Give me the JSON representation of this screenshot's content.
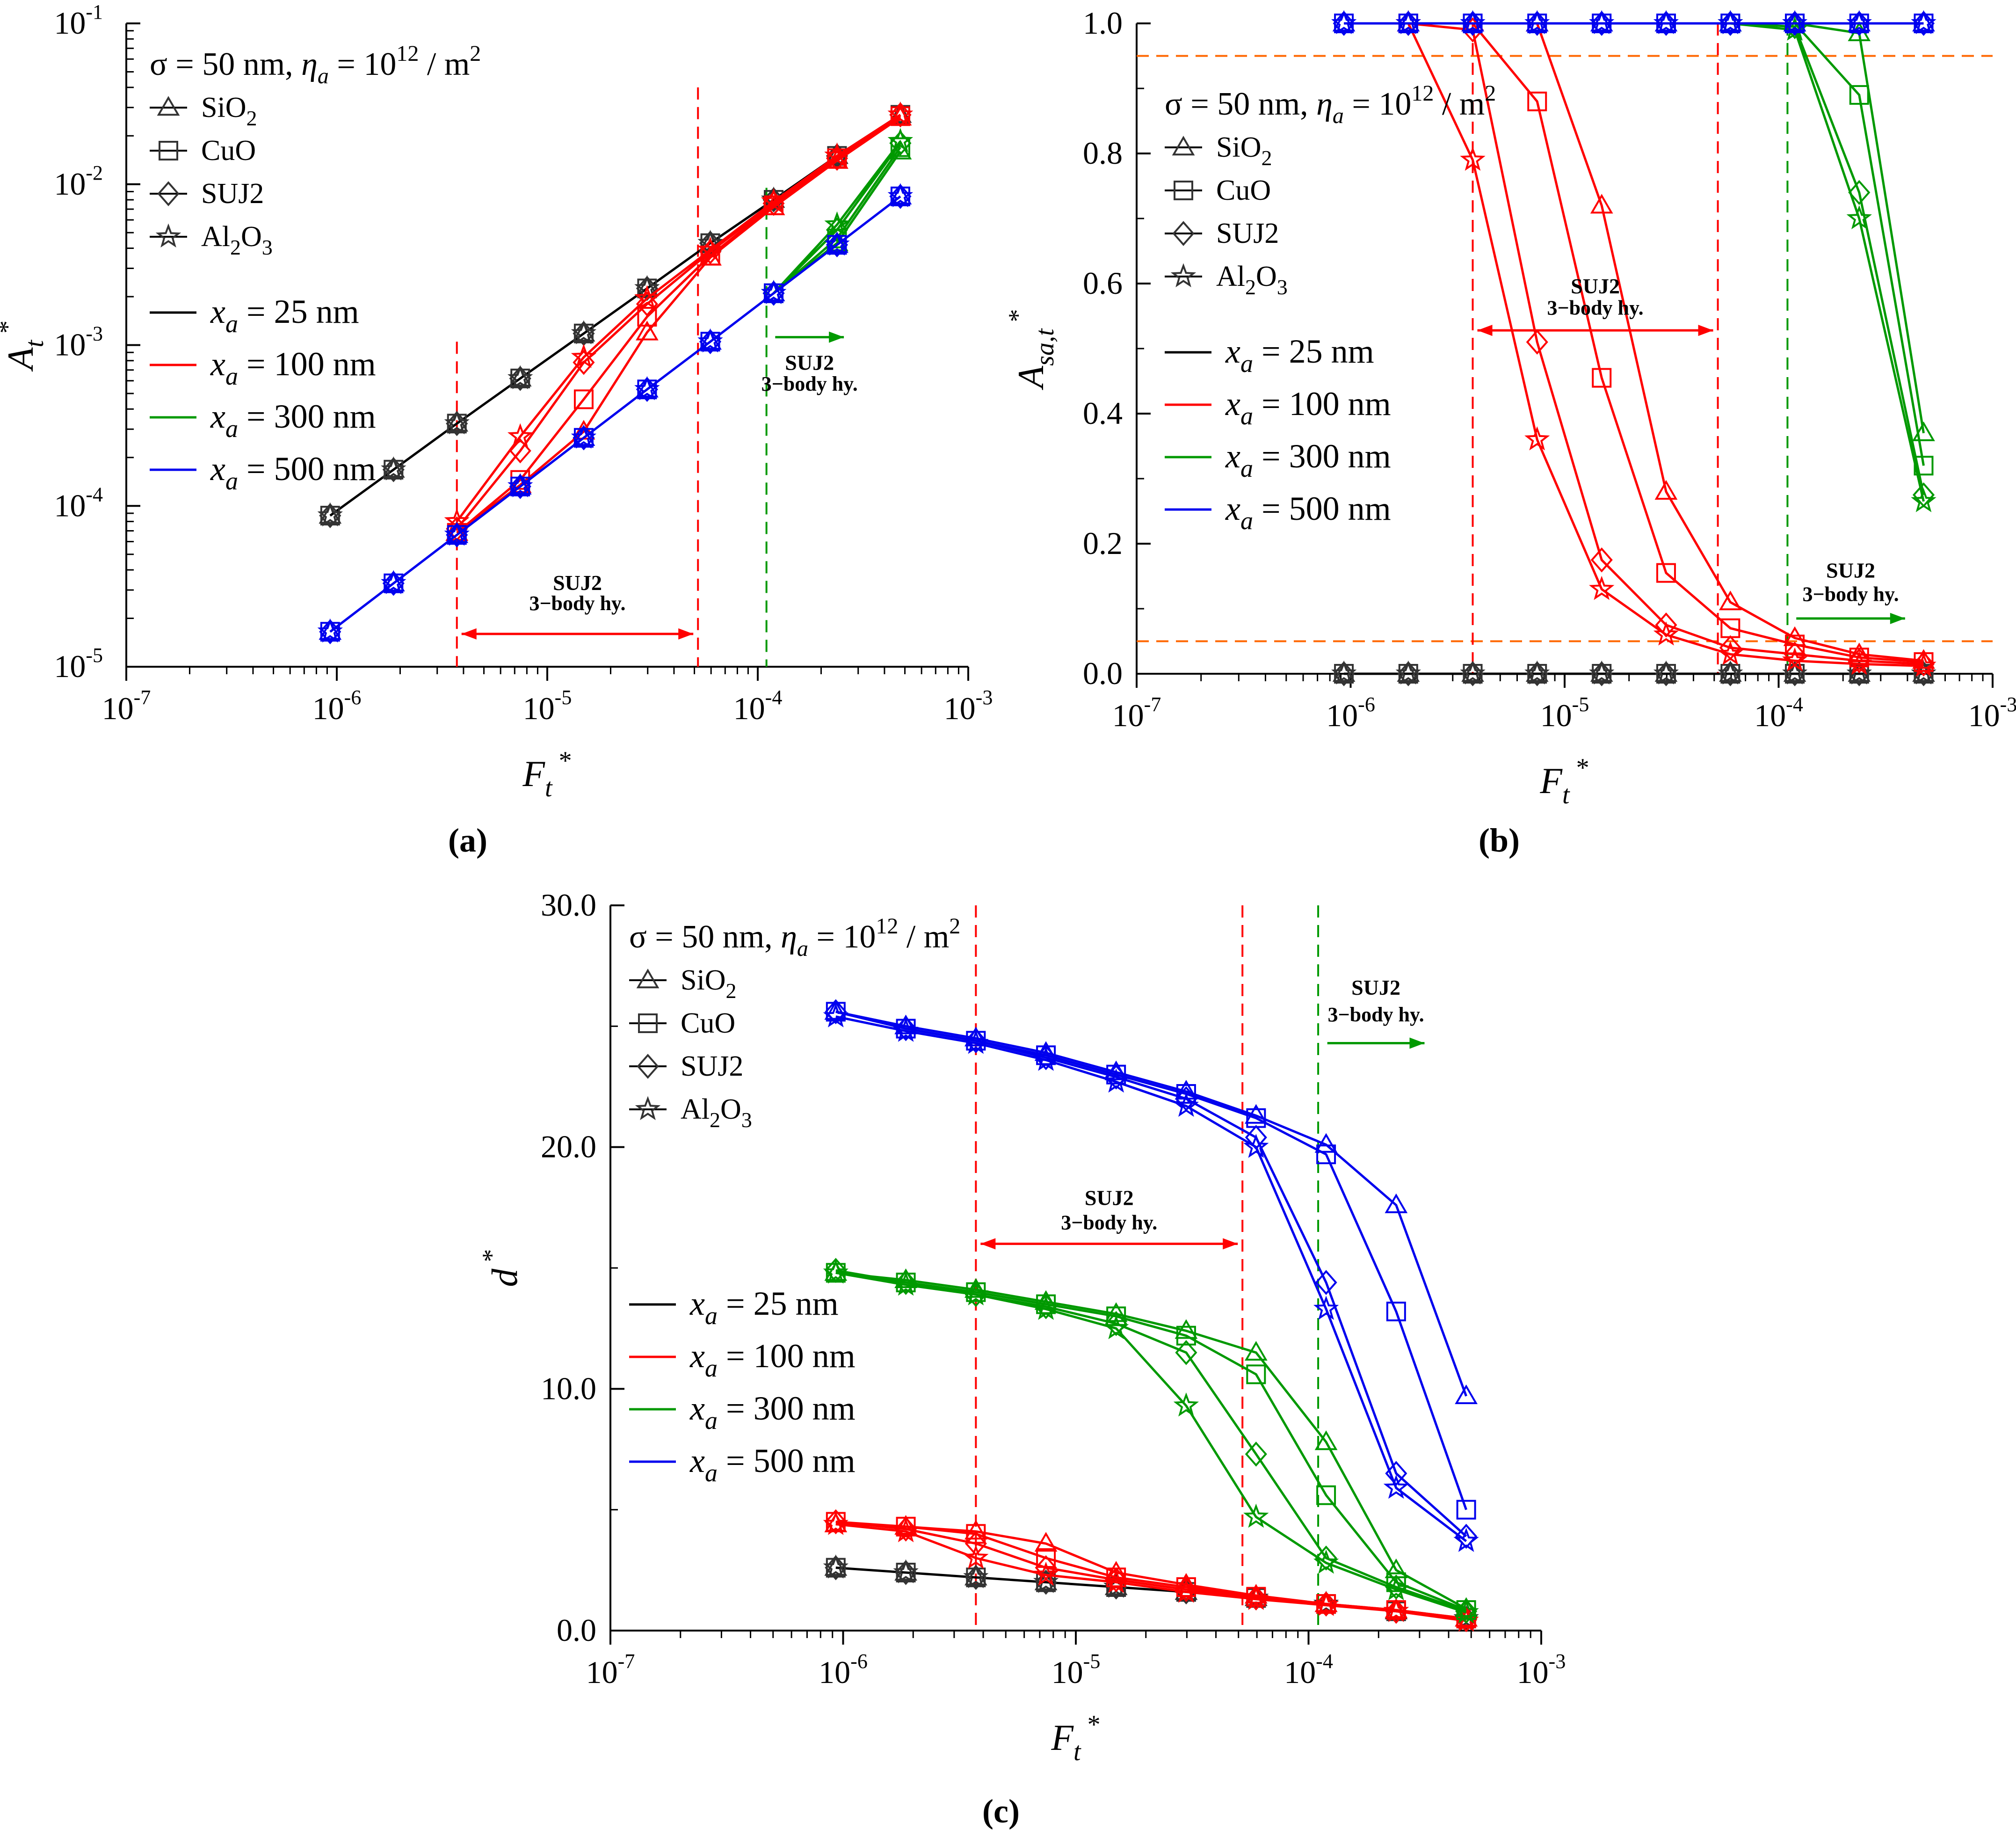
{
  "figure_title": "Three-panel figure: (a) A_t*, (b) A_sa,t*, (c) d* versus F_t*",
  "colors": {
    "xa_25": "#000000",
    "xa_100": "#ff0000",
    "xa_300": "#009900",
    "xa_500": "#0000ee",
    "limit_line": "#ff6600",
    "marker_ink": "#333333"
  },
  "common": {
    "sigma_label": "σ = 50 nm,",
    "eta_sym": "η",
    "eta_sub": "a",
    "eta_eq": " = 10",
    "eta_exp": "12",
    "eta_unit": " / m",
    "eta_unit_exp": "2",
    "x_label_main": "F",
    "x_label_sub": "t",
    "x_label_sup": "*",
    "materials": [
      {
        "key": "SiO2",
        "main": "SiO",
        "sub": "2",
        "tail": "",
        "marker": "triangle-icon"
      },
      {
        "key": "CuO",
        "main": "CuO",
        "sub": "",
        "tail": "",
        "marker": "square-icon"
      },
      {
        "key": "SUJ2",
        "main": "SUJ2",
        "sub": "",
        "tail": "",
        "marker": "diamond-icon"
      },
      {
        "key": "Al2O3",
        "main": "Al",
        "sub": "2",
        "tail": "O",
        "sub2": "3",
        "marker": "star-icon"
      }
    ],
    "series_names": [
      {
        "key": "xa_25",
        "sym": "x",
        "sub": "a",
        "text": " = 25 nm"
      },
      {
        "key": "xa_100",
        "sym": "x",
        "sub": "a",
        "text": " = 100 nm"
      },
      {
        "key": "xa_300",
        "sym": "x",
        "sub": "a",
        "text": " = 300 nm"
      },
      {
        "key": "xa_500",
        "sym": "x",
        "sub": "a",
        "text": " = 500 nm"
      }
    ],
    "annotation_title": "SUJ2",
    "annotation_sub": "3−body hy."
  },
  "chart_data": [
    {
      "panel": "a",
      "panel_label": "(a)",
      "type": "line",
      "xscale": "log",
      "yscale": "log",
      "xlim": [
        1e-07,
        0.001
      ],
      "ylim": [
        1e-05,
        0.1
      ],
      "x_ticks": [
        {
          "v": 1e-07,
          "b": "10",
          "e": "-7"
        },
        {
          "v": 1e-06,
          "b": "10",
          "e": "-6"
        },
        {
          "v": 1e-05,
          "b": "10",
          "e": "-5"
        },
        {
          "v": 0.0001,
          "b": "10",
          "e": "-4"
        },
        {
          "v": 0.001,
          "b": "10",
          "e": "-3"
        }
      ],
      "y_ticks": [
        {
          "v": 1e-05,
          "b": "10",
          "e": "-5"
        },
        {
          "v": 0.0001,
          "b": "10",
          "e": "-4"
        },
        {
          "v": 0.001,
          "b": "10",
          "e": "-3"
        },
        {
          "v": 0.01,
          "b": "10",
          "e": "-2"
        },
        {
          "v": 0.1,
          "b": "10",
          "e": "-1"
        }
      ],
      "ylabel": {
        "main": "A",
        "sub": "t",
        "sup": "*"
      },
      "legend_position": "top-left",
      "x": [
        9.3e-07,
        1.86e-06,
        3.72e-06,
        7.44e-06,
        1.49e-05,
        2.98e-05,
        5.95e-05,
        0.000119,
        0.000238,
        0.000476
      ],
      "series": [
        {
          "key": "xa_25",
          "material": "all",
          "values": [
            8.7e-05,
            0.000168,
            0.000325,
            0.00062,
            0.00118,
            0.00225,
            0.0043,
            0.008,
            0.015,
            0.027
          ]
        },
        {
          "key": "xa_100",
          "material": "SiO2",
          "values": [
            null,
            null,
            6.8e-05,
            0.000135,
            0.00029,
            0.0012,
            0.0035,
            0.0072,
            0.014,
            0.026
          ]
        },
        {
          "key": "xa_100",
          "material": "CuO",
          "values": [
            null,
            null,
            6.8e-05,
            0.000145,
            0.00046,
            0.0015,
            0.0036,
            0.0074,
            0.0145,
            0.0265
          ]
        },
        {
          "key": "xa_100",
          "material": "SUJ2",
          "values": [
            null,
            null,
            7.2e-05,
            0.00022,
            0.00078,
            0.0018,
            0.0038,
            0.0076,
            0.0145,
            0.027
          ]
        },
        {
          "key": "xa_100",
          "material": "Al2O3",
          "values": [
            null,
            null,
            8e-05,
            0.00027,
            0.00084,
            0.00195,
            0.0039,
            0.0078,
            0.015,
            0.027
          ]
        },
        {
          "key": "xa_300",
          "material": "SiO2",
          "values": [
            null,
            null,
            null,
            null,
            null,
            null,
            null,
            0.0021,
            0.0043,
            0.016
          ]
        },
        {
          "key": "xa_300",
          "material": "CuO",
          "values": [
            null,
            null,
            null,
            null,
            null,
            null,
            null,
            0.0021,
            0.0046,
            0.017
          ]
        },
        {
          "key": "xa_300",
          "material": "SUJ2",
          "values": [
            null,
            null,
            null,
            null,
            null,
            null,
            null,
            0.0021,
            0.0052,
            0.018
          ]
        },
        {
          "key": "xa_300",
          "material": "Al2O3",
          "values": [
            null,
            null,
            null,
            null,
            null,
            null,
            null,
            0.0021,
            0.0056,
            0.0185
          ]
        },
        {
          "key": "xa_500",
          "material": "all",
          "values": [
            1.65e-05,
            3.3e-05,
            6.6e-05,
            0.000132,
            0.000265,
            0.00053,
            0.00105,
            0.0021,
            0.0042,
            0.0084
          ]
        }
      ],
      "vlines": [
        {
          "x": 3.72e-06,
          "color": "xa_100"
        },
        {
          "x": 5.2e-05,
          "color": "xa_100"
        },
        {
          "x": 0.00011,
          "color": "xa_300"
        }
      ],
      "hlines": [],
      "annotations": [
        {
          "color": "xa_100",
          "kind": "double-arrow",
          "x_from": 3.72e-06,
          "x_to": 5.2e-05,
          "y": 1.6e-05,
          "title_y": 3e-05,
          "sub_y": 2.25e-05
        },
        {
          "color": "xa_300",
          "kind": "right-arrow",
          "x_from": 0.000115,
          "x_to": 0.00027,
          "y": 0.00112,
          "title_y": 0.0007,
          "sub_y": 0.00052
        }
      ]
    },
    {
      "panel": "b",
      "panel_label": "(b)",
      "type": "line",
      "xscale": "log",
      "yscale": "linear",
      "xlim": [
        1e-07,
        0.001
      ],
      "ylim": [
        0.0,
        1.0
      ],
      "x_ticks": [
        {
          "v": 1e-07,
          "b": "10",
          "e": "-7"
        },
        {
          "v": 1e-06,
          "b": "10",
          "e": "-6"
        },
        {
          "v": 1e-05,
          "b": "10",
          "e": "-5"
        },
        {
          "v": 0.0001,
          "b": "10",
          "e": "-4"
        },
        {
          "v": 0.001,
          "b": "10",
          "e": "-3"
        }
      ],
      "y_ticks": [
        {
          "v": 0.0,
          "t": "0.0"
        },
        {
          "v": 0.2,
          "t": "0.2"
        },
        {
          "v": 0.4,
          "t": "0.4"
        },
        {
          "v": 0.6,
          "t": "0.6"
        },
        {
          "v": 0.8,
          "t": "0.8"
        },
        {
          "v": 1.0,
          "t": "1.0"
        }
      ],
      "ylabel": {
        "main": "A",
        "sub": "sa,t",
        "sup": "*"
      },
      "legend_position": "left",
      "x": [
        9.3e-07,
        1.86e-06,
        3.72e-06,
        7.44e-06,
        1.49e-05,
        2.98e-05,
        5.95e-05,
        0.000119,
        0.000238,
        0.000476
      ],
      "series": [
        {
          "key": "xa_25",
          "material": "all",
          "values": [
            0,
            0,
            0,
            0,
            0,
            0,
            0,
            0,
            0,
            0
          ]
        },
        {
          "key": "xa_100",
          "material": "SiO2",
          "values": [
            null,
            1.0,
            1.0,
            1.0,
            0.72,
            0.28,
            0.11,
            0.055,
            0.03,
            0.02
          ]
        },
        {
          "key": "xa_100",
          "material": "CuO",
          "values": [
            null,
            1.0,
            1.0,
            0.88,
            0.455,
            0.155,
            0.07,
            0.045,
            0.025,
            0.018
          ]
        },
        {
          "key": "xa_100",
          "material": "SUJ2",
          "values": [
            null,
            1.0,
            0.99,
            0.51,
            0.175,
            0.075,
            0.04,
            0.03,
            0.02,
            0.015
          ]
        },
        {
          "key": "xa_100",
          "material": "Al2O3",
          "values": [
            null,
            1.0,
            0.79,
            0.36,
            0.13,
            0.06,
            0.03,
            0.02,
            0.015,
            0.012
          ]
        },
        {
          "key": "xa_300",
          "material": "SiO2",
          "values": [
            null,
            null,
            null,
            null,
            null,
            null,
            1.0,
            1.0,
            0.985,
            0.37
          ]
        },
        {
          "key": "xa_300",
          "material": "CuO",
          "values": [
            null,
            null,
            null,
            null,
            null,
            null,
            1.0,
            1.0,
            0.89,
            0.32
          ]
        },
        {
          "key": "xa_300",
          "material": "SUJ2",
          "values": [
            null,
            null,
            null,
            null,
            null,
            null,
            1.0,
            0.995,
            0.74,
            0.275
          ]
        },
        {
          "key": "xa_300",
          "material": "Al2O3",
          "values": [
            null,
            null,
            null,
            null,
            null,
            null,
            1.0,
            0.99,
            0.7,
            0.265
          ]
        },
        {
          "key": "xa_500",
          "material": "all",
          "values": [
            1,
            1,
            1,
            1,
            1,
            1,
            1,
            1,
            1,
            1
          ]
        }
      ],
      "vlines": [
        {
          "x": 3.72e-06,
          "color": "xa_100"
        },
        {
          "x": 5.2e-05,
          "color": "xa_100"
        },
        {
          "x": 0.00011,
          "color": "xa_300"
        }
      ],
      "hlines": [
        {
          "y": 0.95,
          "color": "limit_line"
        },
        {
          "y": 0.05,
          "color": "limit_line"
        }
      ],
      "annotations": [
        {
          "color": "xa_100",
          "kind": "double-arrow",
          "x_from": 3.72e-06,
          "x_to": 5.2e-05,
          "y": 0.528,
          "title_y": 0.585,
          "sub_y": 0.552
        },
        {
          "color": "xa_300",
          "kind": "right-arrow",
          "x_from": 0.000115,
          "x_to": 0.00041,
          "y": 0.085,
          "title_y": 0.148,
          "sub_y": 0.112
        }
      ]
    },
    {
      "panel": "c",
      "panel_label": "(c)",
      "type": "line",
      "xscale": "log",
      "yscale": "linear",
      "xlim": [
        1e-07,
        0.001
      ],
      "ylim": [
        0.0,
        30.0
      ],
      "x_ticks": [
        {
          "v": 1e-07,
          "b": "10",
          "e": "-7"
        },
        {
          "v": 1e-06,
          "b": "10",
          "e": "-6"
        },
        {
          "v": 1e-05,
          "b": "10",
          "e": "-5"
        },
        {
          "v": 0.0001,
          "b": "10",
          "e": "-4"
        },
        {
          "v": 0.001,
          "b": "10",
          "e": "-3"
        }
      ],
      "y_ticks": [
        {
          "v": 0.0,
          "t": "0.0"
        },
        {
          "v": 10.0,
          "t": "10.0"
        },
        {
          "v": 20.0,
          "t": "20.0"
        },
        {
          "v": 30.0,
          "t": "30.0"
        }
      ],
      "ylabel": {
        "main": "d",
        "sub": "",
        "sup": "*"
      },
      "legend_position": "left",
      "x": [
        9.3e-07,
        1.86e-06,
        3.72e-06,
        7.44e-06,
        1.49e-05,
        2.98e-05,
        5.95e-05,
        0.000119,
        0.000238,
        0.000476
      ],
      "series": [
        {
          "key": "xa_25",
          "material": "all",
          "values": [
            2.6,
            2.4,
            2.2,
            2.0,
            1.8,
            1.6,
            1.35,
            1.1,
            0.8,
            0.5
          ]
        },
        {
          "key": "xa_100",
          "material": "SiO2",
          "values": [
            4.4,
            4.3,
            4.1,
            3.6,
            2.4,
            1.9,
            1.45,
            1.1,
            0.85,
            0.5
          ]
        },
        {
          "key": "xa_100",
          "material": "CuO",
          "values": [
            4.5,
            4.3,
            4.0,
            3.0,
            2.2,
            1.8,
            1.4,
            1.1,
            0.85,
            0.5
          ]
        },
        {
          "key": "xa_100",
          "material": "SUJ2",
          "values": [
            4.5,
            4.2,
            3.6,
            2.6,
            2.1,
            1.7,
            1.35,
            1.1,
            0.8,
            0.45
          ]
        },
        {
          "key": "xa_100",
          "material": "Al2O3",
          "values": [
            4.4,
            4.1,
            3.0,
            2.3,
            2.0,
            1.6,
            1.3,
            1.05,
            0.8,
            0.4
          ]
        },
        {
          "key": "xa_300",
          "material": "SiO2",
          "values": [
            14.8,
            14.5,
            14.1,
            13.6,
            13.1,
            12.4,
            11.5,
            7.8,
            2.5,
            0.9
          ]
        },
        {
          "key": "xa_300",
          "material": "CuO",
          "values": [
            14.8,
            14.4,
            14.0,
            13.5,
            13.0,
            12.2,
            10.6,
            5.6,
            2.0,
            0.85
          ]
        },
        {
          "key": "xa_300",
          "material": "SUJ2",
          "values": [
            14.9,
            14.4,
            13.9,
            13.4,
            12.7,
            11.5,
            7.3,
            3.0,
            1.8,
            0.8
          ]
        },
        {
          "key": "xa_300",
          "material": "Al2O3",
          "values": [
            14.8,
            14.3,
            13.9,
            13.3,
            12.5,
            9.3,
            4.7,
            2.8,
            1.7,
            0.75
          ]
        },
        {
          "key": "xa_500",
          "material": "SiO2",
          "values": [
            25.6,
            25.0,
            24.5,
            23.9,
            23.1,
            22.3,
            21.3,
            20.1,
            17.6,
            9.7
          ]
        },
        {
          "key": "xa_500",
          "material": "CuO",
          "values": [
            25.6,
            24.9,
            24.4,
            23.8,
            23.0,
            22.2,
            21.2,
            19.7,
            13.2,
            5.0
          ]
        },
        {
          "key": "xa_500",
          "material": "SUJ2",
          "values": [
            25.6,
            24.9,
            24.4,
            23.7,
            22.9,
            22.0,
            20.4,
            14.4,
            6.5,
            3.9
          ]
        },
        {
          "key": "xa_500",
          "material": "Al2O3",
          "values": [
            25.4,
            24.8,
            24.3,
            23.6,
            22.7,
            21.7,
            20.0,
            13.3,
            5.9,
            3.7
          ]
        }
      ],
      "vlines": [
        {
          "x": 3.72e-06,
          "color": "xa_100"
        },
        {
          "x": 5.2e-05,
          "color": "xa_100"
        },
        {
          "x": 0.00011,
          "color": "xa_300"
        }
      ],
      "hlines": [],
      "annotations": [
        {
          "color": "xa_100",
          "kind": "double-arrow",
          "x_from": 3.72e-06,
          "x_to": 5.2e-05,
          "y": 16.0,
          "title_y": 17.6,
          "sub_y": 16.6
        },
        {
          "color": "xa_300",
          "kind": "right-arrow",
          "x_from": 0.000115,
          "x_to": 0.00033,
          "y": 24.3,
          "title_y": 26.3,
          "sub_y": 25.2
        }
      ]
    }
  ]
}
